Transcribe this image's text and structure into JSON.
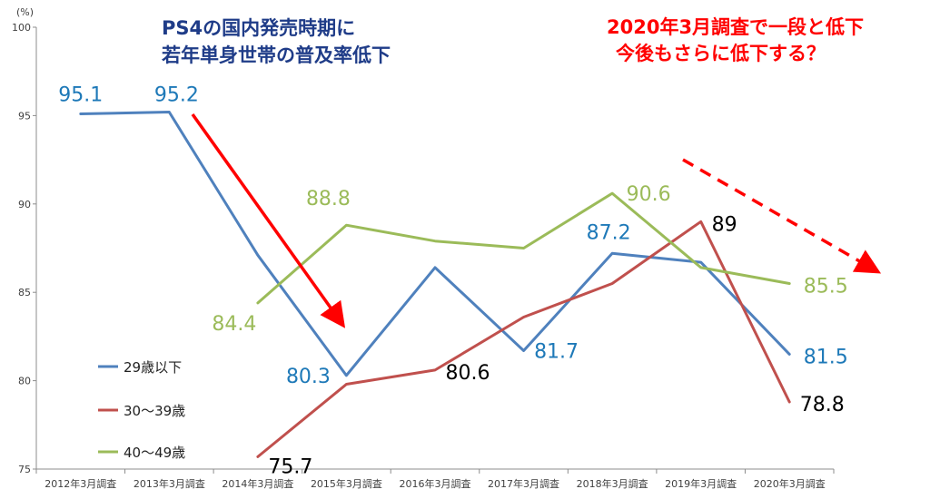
{
  "chart_data": {
    "type": "line",
    "title": "",
    "xlabel": "",
    "ylabel": "",
    "y_unit": "(%)",
    "ylim": [
      75,
      100
    ],
    "yticks": [
      75,
      80,
      85,
      90,
      95,
      100
    ],
    "grid": false,
    "legend_position": "bottom-left",
    "categories": [
      "2012年3月調査",
      "2013年3月調査",
      "2014年3月調査",
      "2015年3月調査",
      "2016年3月調査",
      "2017年3月調査",
      "2018年3月調査",
      "2019年3月調査",
      "2020年3月調査"
    ],
    "series": [
      {
        "name": "29歳以下",
        "color": "#4f81bd",
        "label_color": "#1e79b8",
        "values": [
          95.1,
          95.2,
          87.1,
          80.3,
          86.4,
          81.7,
          87.2,
          86.7,
          81.5
        ]
      },
      {
        "name": "30〜39歳",
        "color": "#c0504d",
        "label_color": "#000000",
        "values": [
          null,
          null,
          75.7,
          79.8,
          80.6,
          83.6,
          85.5,
          89.0,
          78.8
        ]
      },
      {
        "name": "40〜49歳",
        "color": "#9bbb59",
        "label_color": "#9bbb59",
        "values": [
          null,
          null,
          84.4,
          88.8,
          87.9,
          87.5,
          90.6,
          86.4,
          85.5
        ]
      }
    ],
    "data_labels": [
      {
        "series": 0,
        "index": 0,
        "text": "95.1"
      },
      {
        "series": 0,
        "index": 1,
        "text": "95.2"
      },
      {
        "series": 0,
        "index": 3,
        "text": "80.3"
      },
      {
        "series": 0,
        "index": 5,
        "text": "81.7"
      },
      {
        "series": 0,
        "index": 6,
        "text": "87.2"
      },
      {
        "series": 0,
        "index": 8,
        "text": "81.5"
      },
      {
        "series": 1,
        "index": 2,
        "text": "75.7"
      },
      {
        "series": 1,
        "index": 4,
        "text": "80.6"
      },
      {
        "series": 1,
        "index": 7,
        "text": "89"
      },
      {
        "series": 1,
        "index": 8,
        "text": "78.8"
      },
      {
        "series": 2,
        "index": 2,
        "text": "84.4"
      },
      {
        "series": 2,
        "index": 3,
        "text": "88.8"
      },
      {
        "series": 2,
        "index": 6,
        "text": "90.6"
      },
      {
        "series": 2,
        "index": 8,
        "text": "85.5"
      }
    ],
    "annotations": {
      "left_line1": "PS4の国内発売時期に",
      "left_line2": "若年単身世帯の普及率低下",
      "right_line1": "2020年3月調査で一段と低下",
      "right_line2": "今後もさらに低下する？",
      "arrow_color": "#ff0000"
    }
  }
}
